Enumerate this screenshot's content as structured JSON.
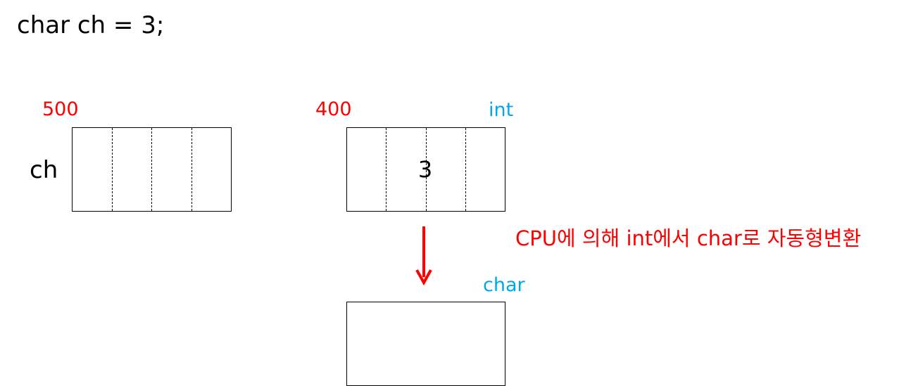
{
  "code_line": "char ch = 3;",
  "left_block": {
    "address": "500",
    "variable": "ch"
  },
  "right_block": {
    "address": "400",
    "type": "int",
    "value": "3"
  },
  "conversion_note": "CPU에 의해 int에서 char로 자동형변환",
  "result_block": {
    "type": "char"
  },
  "colors": {
    "address": "#ff0000",
    "type": "#00a8e8",
    "arrow": "#ff0000",
    "note": "#ff0000"
  }
}
